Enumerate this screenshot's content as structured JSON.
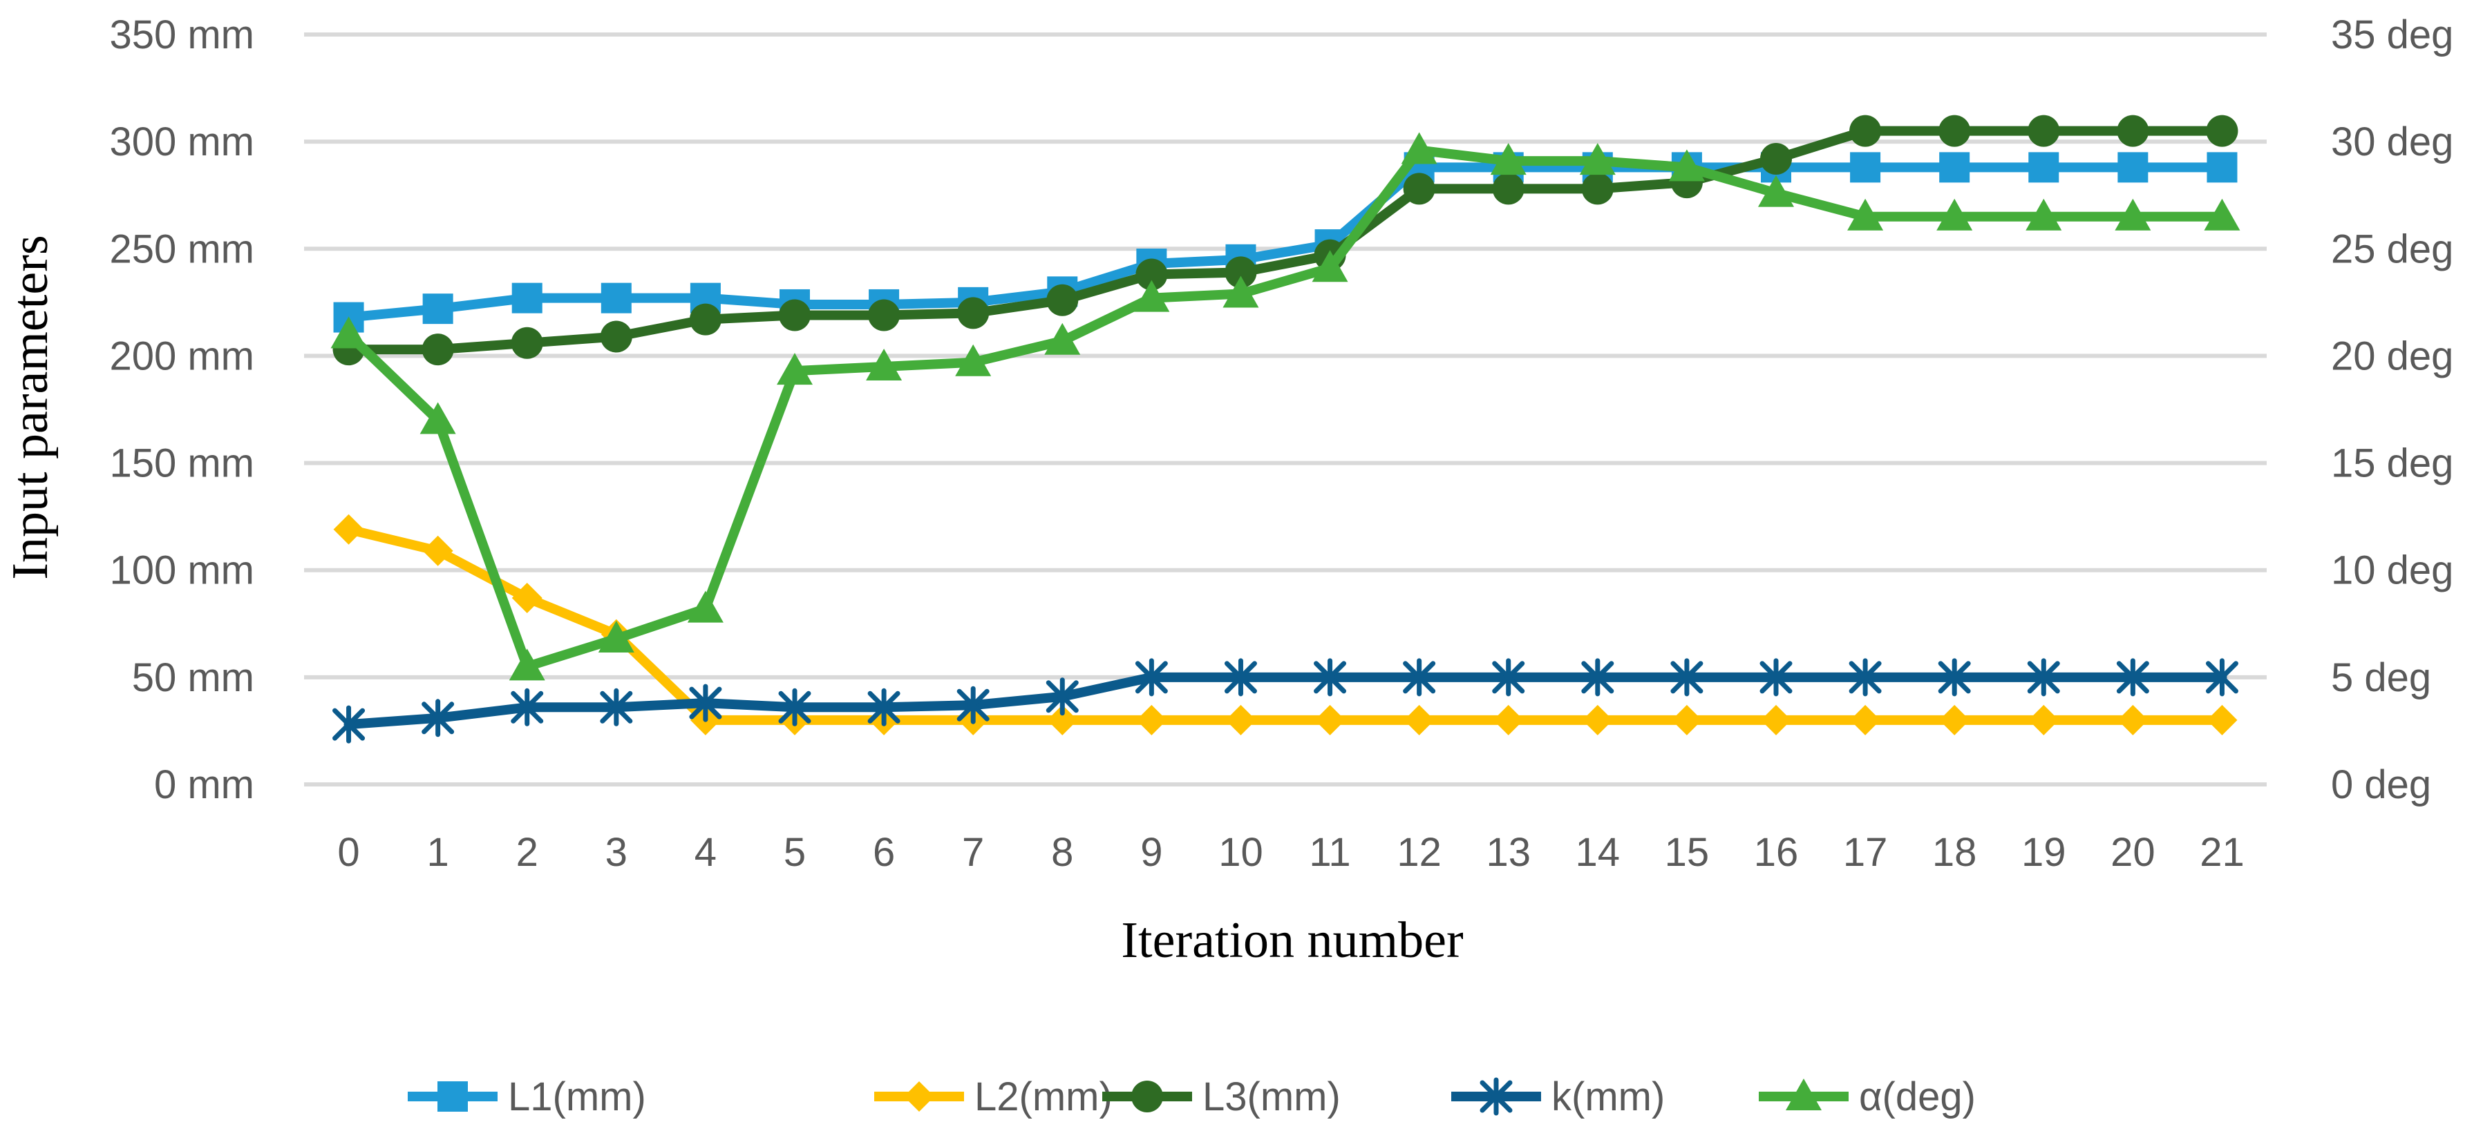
{
  "chart_data": {
    "type": "line",
    "title": "",
    "xlabel": "Iteration number",
    "ylabel": "Input parameters",
    "categories": [
      "0",
      "1",
      "2",
      "3",
      "4",
      "5",
      "6",
      "7",
      "8",
      "9",
      "10",
      "11",
      "12",
      "13",
      "14",
      "15",
      "16",
      "17",
      "18",
      "19",
      "20",
      "21"
    ],
    "y_left": {
      "ylim": [
        0,
        350
      ],
      "ticks": [
        0,
        50,
        100,
        150,
        200,
        250,
        300,
        350
      ],
      "tick_labels": [
        "0 mm",
        "50 mm",
        "100 mm",
        "150 mm",
        "200 mm",
        "250 mm",
        "300 mm",
        "350 mm"
      ]
    },
    "y_right": {
      "ylim": [
        0,
        35
      ],
      "ticks": [
        0,
        5,
        10,
        15,
        20,
        25,
        30,
        35
      ],
      "tick_labels": [
        "0 deg",
        "5 deg",
        "10 deg",
        "15 deg",
        "20 deg",
        "25 deg",
        "30 deg",
        "35 deg"
      ]
    },
    "grid": true,
    "legend_position": "bottom",
    "series": [
      {
        "name": "L1(mm)",
        "axis": "left",
        "color": "#1f9ad6",
        "marker": "square",
        "values": [
          218,
          222,
          227,
          227,
          227,
          224,
          224,
          225,
          230,
          243,
          245,
          252,
          288,
          288,
          288,
          288,
          288,
          288,
          288,
          288,
          288,
          288
        ]
      },
      {
        "name": "L2(mm)",
        "axis": "left",
        "color": "#ffc000",
        "marker": "diamond",
        "values": [
          119,
          109,
          87,
          70,
          30,
          30,
          30,
          30,
          30,
          30,
          30,
          30,
          30,
          30,
          30,
          30,
          30,
          30,
          30,
          30,
          30,
          30
        ]
      },
      {
        "name": "L3(mm)",
        "axis": "left",
        "color": "#2e6b23",
        "marker": "circle",
        "values": [
          203,
          203,
          206,
          209,
          217,
          219,
          219,
          220,
          226,
          238,
          239,
          247,
          278,
          278,
          278,
          281,
          292,
          305,
          305,
          305,
          305,
          305
        ]
      },
      {
        "name": "k(mm)",
        "axis": "left",
        "color": "#0b5a8c",
        "marker": "star",
        "values": [
          28,
          31,
          36,
          36,
          38,
          36,
          36,
          37,
          41,
          50,
          50,
          50,
          50,
          50,
          50,
          50,
          50,
          50,
          50,
          50,
          50,
          50
        ]
      },
      {
        "name": "α(deg)",
        "axis": "right",
        "color": "#44ad3a",
        "marker": "triangle",
        "values": [
          21,
          17,
          5.5,
          6.8,
          8.2,
          19.3,
          19.5,
          19.7,
          20.7,
          22.7,
          22.9,
          24.1,
          29.6,
          29.1,
          29.1,
          28.8,
          27.6,
          26.5,
          26.5,
          26.5,
          26.5,
          26.5
        ]
      }
    ]
  }
}
